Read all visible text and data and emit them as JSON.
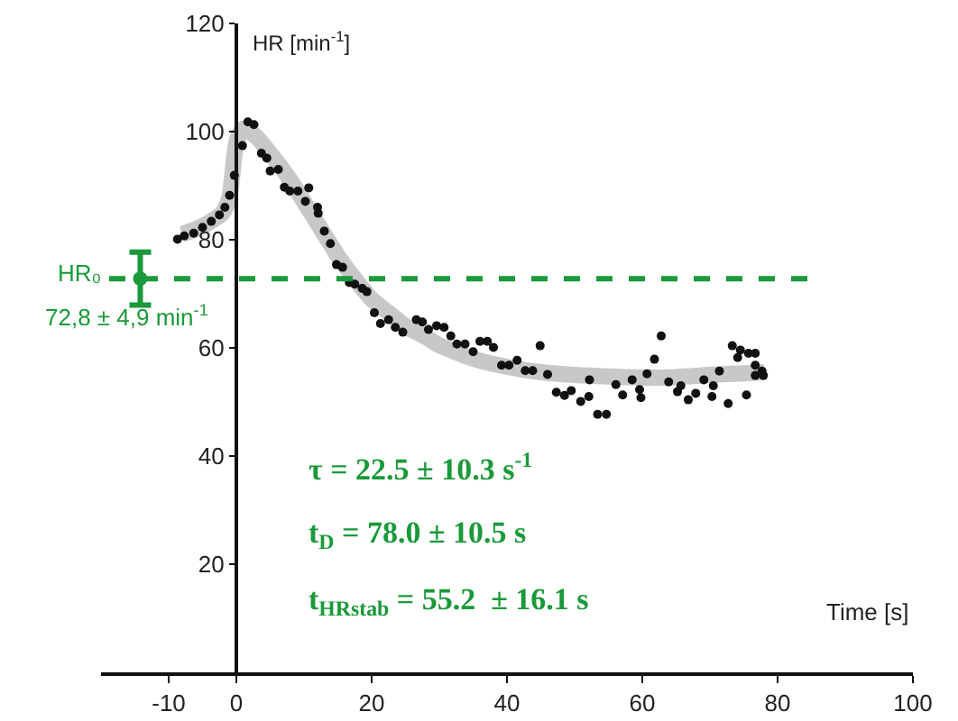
{
  "chart_data": {
    "type": "scatter",
    "xlabel": "Time [s]",
    "ylabel": "HR [min$^{-1}$]",
    "xlim": [
      -20,
      100
    ],
    "xticks": [
      -10,
      0,
      20,
      40,
      60,
      80,
      100
    ],
    "ylim": [
      0,
      120
    ],
    "yticks": [
      20,
      40,
      60,
      80,
      100,
      120
    ],
    "grid": false,
    "marker": "circle",
    "series": [
      {
        "color": "#111111",
        "x": [
          -8.7,
          -7.7,
          -6.3,
          -5,
          -3.7,
          -2.5,
          -1.7,
          -1,
          -0.3,
          0.9,
          1.7,
          2.6,
          3.7,
          4.5,
          5,
          6.2,
          7.1,
          7.9,
          9.1,
          10.2,
          10.7,
          12,
          12.1,
          13,
          13.9,
          14.8,
          15.7,
          16.7,
          17.5,
          18.6,
          19.3,
          20.4,
          21.3,
          22.5,
          23.5,
          24.6,
          26.6,
          27.5,
          28.4,
          29.6,
          30.7,
          31.7,
          32.6,
          33.8,
          35,
          36,
          37.1,
          38,
          39.2,
          40.3,
          41.5,
          42.7,
          43.8,
          44.9,
          46,
          47.3,
          48.5,
          49.5,
          50.9,
          52.1,
          52.2,
          53.4,
          54.7,
          56.1,
          57.1,
          58.5,
          59.6,
          59.8,
          60.7,
          61.8,
          62.8,
          63.9,
          65.2,
          65.7,
          66.8,
          67.9,
          69.1,
          70.3,
          70.5,
          71.4,
          72.7,
          73.3,
          74.1,
          74.5,
          75.4,
          75.7,
          76.7,
          76.7,
          76.7,
          77.7,
          77.9
        ],
        "values": [
          80.1,
          80.7,
          81.2,
          82.3,
          83.4,
          84.6,
          86,
          88.2,
          91.9,
          97.4,
          101.8,
          101.3,
          96,
          95.1,
          92.7,
          93,
          89.7,
          89,
          89,
          87.1,
          89.6,
          86,
          84.9,
          81.6,
          79.3,
          75.4,
          74.9,
          72.1,
          71.8,
          71,
          70.4,
          66.5,
          64.5,
          65.2,
          63.8,
          62.9,
          65.2,
          64.8,
          63.4,
          64.1,
          63.8,
          62.2,
          60.7,
          60.7,
          59.3,
          61.2,
          61.2,
          60.1,
          56.8,
          56.8,
          57.7,
          55.8,
          55.8,
          60.4,
          55.1,
          51.8,
          51.2,
          52.1,
          50.1,
          51,
          54.1,
          47.7,
          47.7,
          53.2,
          51.3,
          54.1,
          52.3,
          50.8,
          55.2,
          57.9,
          62.2,
          53.7,
          51.9,
          53,
          50.4,
          51.6,
          54.1,
          51,
          53,
          55.7,
          49.7,
          60.4,
          58.2,
          59.6,
          51.3,
          59,
          59,
          56.8,
          54.9,
          55.7,
          54.9
        ]
      },
      {
        "type": "line",
        "marker": "none",
        "color": "#c8c8c8",
        "x": [
          -8,
          -5,
          -2,
          -1,
          0,
          1,
          3,
          5,
          8,
          10,
          13,
          15,
          18,
          20,
          23,
          25,
          28,
          30,
          35,
          40,
          45,
          50,
          55,
          60,
          65,
          70,
          75,
          78
        ],
        "values": [
          81,
          82.5,
          85,
          88,
          98,
          100.5,
          99,
          96,
          91,
          87,
          81,
          77,
          72,
          69,
          66,
          64,
          62,
          60.5,
          58,
          56.5,
          55.5,
          55,
          54.7,
          54.5,
          54.6,
          55,
          55.3,
          55.5
        ]
      },
      {
        "color": "#1a9a3a",
        "x": [
          -14.2
        ],
        "values": [
          72.8
        ],
        "errors": [
          4.9
        ]
      }
    ],
    "ref_lines": [
      {
        "axis": "y",
        "value": 72.8,
        "color": "#1a9a3a",
        "line_style": "dashed"
      }
    ],
    "annotations": [
      {
        "text": "HR₀",
        "x": -14.2,
        "y": 72.8
      },
      {
        "text": "72,8 ± 4,9 min$^{-1}$",
        "x": -14.2,
        "y": 72.8
      },
      "τ = 22.5 ± 10.3 s$^{-1}$",
      "t$_{D}$ = 78.0 ± 10.5 s",
      "t$_{HRstab}$ = 55.2  ± 16.1 s"
    ]
  }
}
